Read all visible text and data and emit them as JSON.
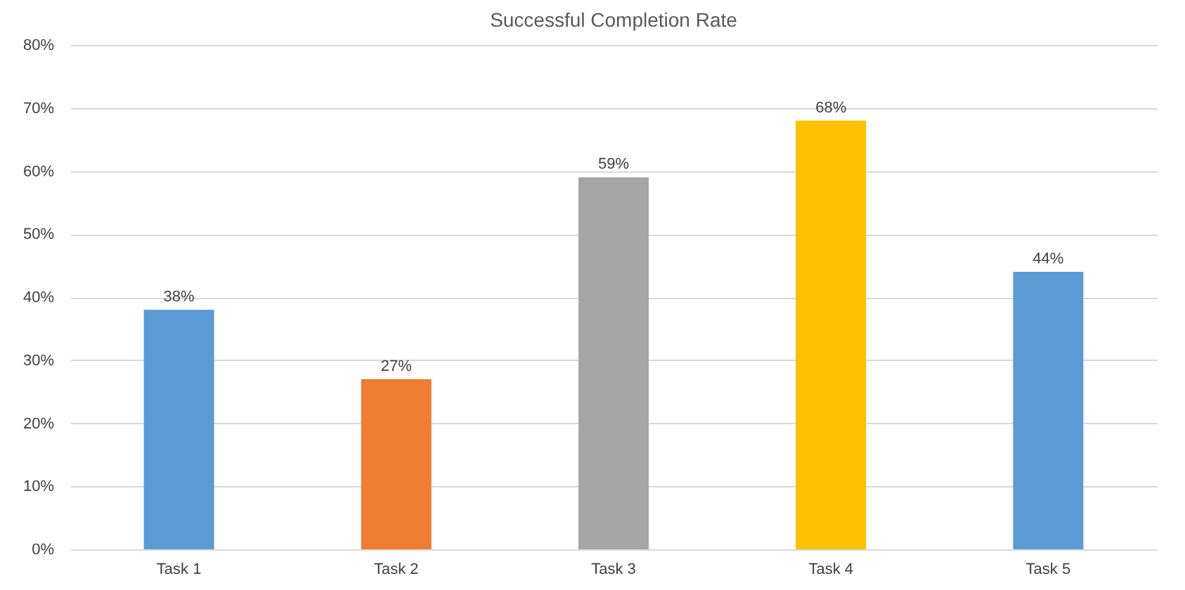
{
  "chart_data": {
    "type": "bar",
    "title": "Successful Completion Rate",
    "categories": [
      "Task 1",
      "Task 2",
      "Task 3",
      "Task 4",
      "Task 5"
    ],
    "values": [
      38,
      27,
      59,
      68,
      44
    ],
    "colors": [
      "#5b9bd5",
      "#ed7d31",
      "#a5a5a5",
      "#ffc000",
      "#5b9bd5"
    ],
    "value_labels": [
      "38%",
      "27%",
      "59%",
      "68%",
      "44%"
    ],
    "ylim": [
      0,
      80
    ],
    "yticks": [
      {
        "value": 0,
        "label": "0%"
      },
      {
        "value": 10,
        "label": "10%"
      },
      {
        "value": 20,
        "label": "20%"
      },
      {
        "value": 30,
        "label": "30%"
      },
      {
        "value": 40,
        "label": "40%"
      },
      {
        "value": 50,
        "label": "50%"
      },
      {
        "value": 60,
        "label": "60%"
      },
      {
        "value": 70,
        "label": "70%"
      },
      {
        "value": 80,
        "label": "80%"
      }
    ],
    "grid": "y"
  }
}
